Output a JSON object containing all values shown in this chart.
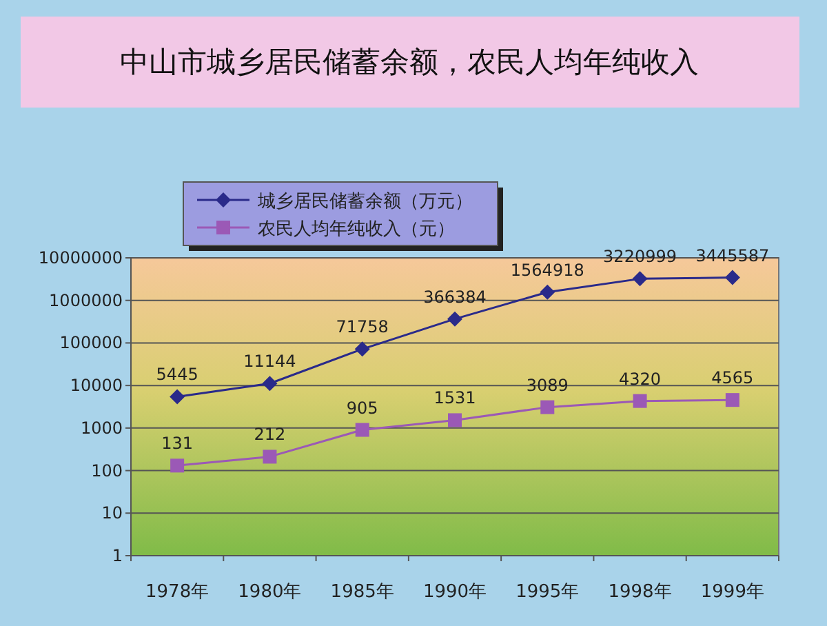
{
  "chart_data": {
    "type": "line",
    "title": "中山市城乡居民储蓄余额，农民人均年纯收入",
    "categories": [
      "1978年",
      "1980年",
      "1985年",
      "1990年",
      "1995年",
      "1998年",
      "1999年"
    ],
    "series": [
      {
        "name": "城乡居民储蓄余额（万元）",
        "color": "#2a2a8a",
        "marker": "diamond",
        "values": [
          5445,
          11144,
          71758,
          366384,
          1564918,
          3220999,
          3445587
        ]
      },
      {
        "name": "农民人均年纯收入（元）",
        "color": "#9b59b6",
        "marker": "square",
        "values": [
          131,
          212,
          905,
          1531,
          3089,
          4320,
          4565
        ]
      }
    ],
    "log": "y",
    "ylim": [
      1,
      10000000
    ],
    "yticks": [
      1,
      10,
      100,
      1000,
      10000,
      100000,
      1000000,
      10000000
    ],
    "grid": "y",
    "legend": "top left",
    "data_labels": true
  }
}
